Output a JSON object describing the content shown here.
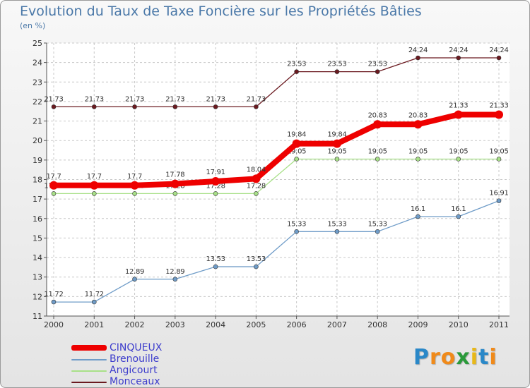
{
  "title": "Evolution du Taux de Taxe Foncière sur les Propriétés Bâties",
  "unit_label": "(en %)",
  "logo": {
    "letters": [
      "P",
      "r",
      "o",
      "x",
      "i",
      "t",
      "i"
    ],
    "colors": [
      "#2a88c8",
      "#f08a1a",
      "#f08a1a",
      "#2a9a3a",
      "#e8b818",
      "#2a88c8",
      "#f08a1a"
    ]
  },
  "chart_data": {
    "type": "line",
    "title": "Evolution du Taux de Taxe Foncière sur les Propriétés Bâties",
    "ylabel": "(en %)",
    "x": [
      "2000",
      "2001",
      "2002",
      "2003",
      "2004",
      "2005",
      "2006",
      "2007",
      "2008",
      "2009",
      "2010",
      "2011"
    ],
    "ylim": [
      11,
      25
    ],
    "yticks": [
      11,
      12,
      13,
      14,
      15,
      16,
      17,
      18,
      19,
      20,
      21,
      22,
      23,
      24,
      25
    ],
    "series": [
      {
        "name": "Monceaux",
        "color": "#6b1a20",
        "values": [
          21.73,
          21.73,
          21.73,
          21.73,
          21.73,
          21.73,
          23.53,
          23.53,
          23.53,
          24.24,
          24.24,
          24.24
        ],
        "labels": [
          "21.73",
          "21.73",
          "21.73",
          "21.73",
          "21.73",
          "21.73",
          "23.53",
          "23.53",
          "23.53",
          "24.24",
          "24.24",
          "24.24"
        ]
      },
      {
        "name": "Brenouille",
        "color": "#6f9cc8",
        "values": [
          11.72,
          11.72,
          12.89,
          12.89,
          13.53,
          13.53,
          15.33,
          15.33,
          15.33,
          16.1,
          16.1,
          16.91
        ],
        "labels": [
          "11.72",
          "11.72",
          "12.89",
          "12.89",
          "13.53",
          "13.53",
          "15.33",
          "15.33",
          "15.33",
          "16.1",
          "16.1",
          "16.91"
        ]
      },
      {
        "name": "Angicourt",
        "color": "#a8e088",
        "values": [
          17.28,
          17.28,
          17.28,
          17.28,
          17.28,
          17.28,
          19.05,
          19.05,
          19.05,
          19.05,
          19.05,
          19.05
        ],
        "labels": [
          "17.28",
          "17.28",
          "17.28",
          "17.28",
          "17.28",
          "17.28",
          "19.05",
          "19.05",
          "19.05",
          "19.05",
          "19.05",
          "19.05"
        ]
      },
      {
        "name": "CINQUEUX",
        "color": "#ee0000",
        "values": [
          17.7,
          17.7,
          17.7,
          17.78,
          17.91,
          18.04,
          19.84,
          19.84,
          20.83,
          20.83,
          21.33,
          21.33
        ],
        "labels": [
          "17.7",
          "17.7",
          "17.7",
          "17.78",
          "17.91",
          "18.04",
          "19.84",
          "19.84",
          "20.83",
          "20.83",
          "21.33",
          "21.33"
        ]
      }
    ],
    "legend": [
      {
        "name": "CINQUEUX",
        "color": "#ee0000",
        "thick": true
      },
      {
        "name": "Brenouille",
        "color": "#6f9cc8",
        "thick": false
      },
      {
        "name": "Angicourt",
        "color": "#a8e088",
        "thick": false
      },
      {
        "name": "Monceaux",
        "color": "#6b1a20",
        "thick": false
      }
    ]
  }
}
